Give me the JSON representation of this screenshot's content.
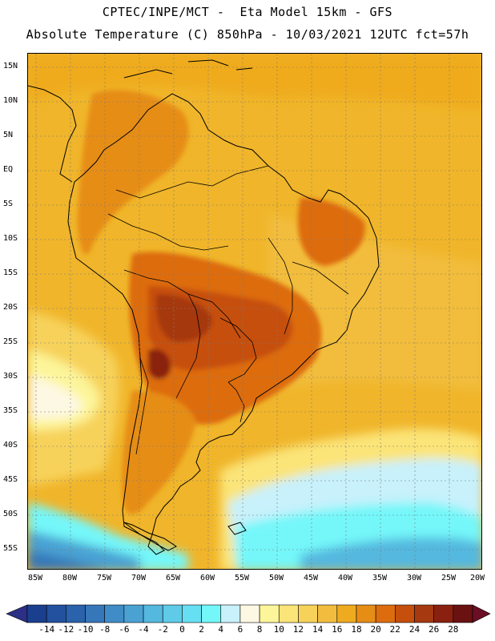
{
  "header": {
    "title_line1": "CPTEC/INPE/MCT -  Eta Model 15km - GFS",
    "title_line2": "Absolute Temperature (C) 850hPa - 10/03/2021 12UTC fct=57h"
  },
  "map": {
    "lat_labels": [
      "15N",
      "10N",
      "5N",
      "EQ",
      "5S",
      "10S",
      "15S",
      "20S",
      "25S",
      "30S",
      "35S",
      "40S",
      "45S",
      "50S",
      "55S"
    ],
    "lon_labels": [
      "85W",
      "80W",
      "75W",
      "70W",
      "65W",
      "60W",
      "55W",
      "50W",
      "45W",
      "40W",
      "35W",
      "30W",
      "25W",
      "20W"
    ],
    "region": "South America",
    "variable": "Absolute Temperature (C) 850hPa"
  },
  "colorbar": {
    "labels": [
      "-14",
      "-12",
      "-10",
      "-8",
      "-6",
      "-4",
      "-2",
      "0",
      "2",
      "4",
      "6",
      "8",
      "10",
      "12",
      "14",
      "16",
      "18",
      "20",
      "22",
      "24",
      "26",
      "28"
    ],
    "colors": [
      "#1b3f8f",
      "#23519e",
      "#2a62ab",
      "#3677b9",
      "#3f8cc6",
      "#4aa2d3",
      "#55b8df",
      "#5fcbe8",
      "#66dff2",
      "#74f7f9",
      "#c8f1fb",
      "#fdf8e3",
      "#fdf59a",
      "#fbe478",
      "#f7d25a",
      "#f2bd3e",
      "#efab1f",
      "#e68d16",
      "#dd6c0f",
      "#c64f0d",
      "#a63910",
      "#8a2110",
      "#6a1212"
    ],
    "end_arrow_left": "#2c2f86",
    "end_arrow_right": "#6a0f24"
  }
}
